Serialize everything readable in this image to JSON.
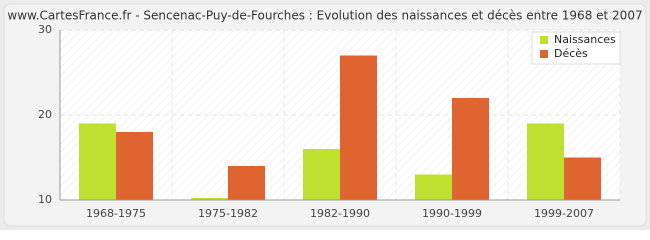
{
  "chart_data": {
    "type": "bar",
    "title": "www.CartesFrance.fr - Sencenac-Puy-de-Fourches : Evolution des naissances et décès entre 1968 et 2007",
    "categories": [
      "1968-1975",
      "1975-1982",
      "1982-1990",
      "1990-1999",
      "1999-2007"
    ],
    "series": [
      {
        "name": "Naissances",
        "color": "#bde12e",
        "values": [
          19,
          10,
          16,
          13,
          19
        ]
      },
      {
        "name": "Décès",
        "color": "#e0642f",
        "values": [
          18,
          14,
          27,
          22,
          15
        ]
      }
    ],
    "ylim": [
      10,
      30
    ],
    "yticks": [
      10,
      20,
      30
    ],
    "grid": true,
    "legend": "top-right"
  }
}
